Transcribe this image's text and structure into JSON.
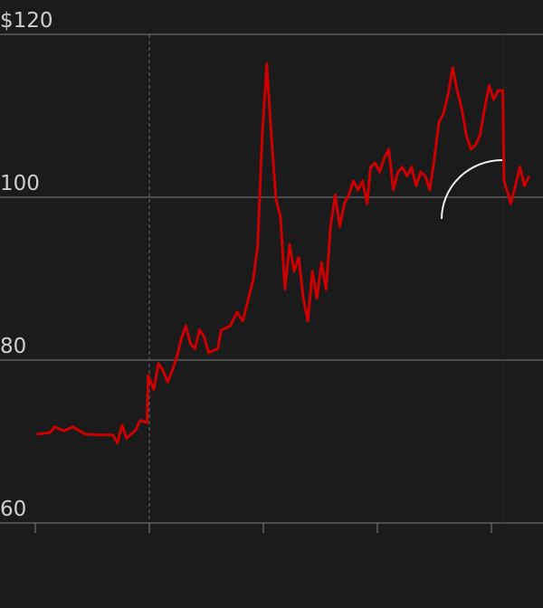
{
  "chart_data": {
    "type": "line",
    "title": "",
    "xlabel": "",
    "ylabel": "",
    "ylim": [
      60,
      120
    ],
    "yticks": [
      60,
      80,
      100,
      120
    ],
    "ytick_labels": [
      "60",
      "80",
      "100",
      "$120"
    ],
    "xticks": [
      0,
      1,
      2,
      3,
      4
    ],
    "xtick_labels": [],
    "xlim": [
      0,
      4.4
    ],
    "grid": "horizontal",
    "reference_lines_x": [
      1,
      4.11
    ],
    "colors": {
      "line": "#cc0000",
      "background": "#1b1b1b",
      "grid": "#6a6a6a",
      "annotation": "#f0f0f0"
    },
    "x": [
      0.01,
      0.13,
      0.17,
      0.25,
      0.33,
      0.44,
      0.56,
      0.68,
      0.72,
      0.76,
      0.8,
      0.88,
      0.92,
      0.98,
      0.99,
      1.04,
      1.08,
      1.12,
      1.16,
      1.2,
      1.24,
      1.28,
      1.32,
      1.36,
      1.4,
      1.44,
      1.48,
      1.52,
      1.6,
      1.63,
      1.71,
      1.77,
      1.82,
      1.87,
      1.91,
      1.95,
      1.99,
      2.03,
      2.07,
      2.11,
      2.15,
      2.19,
      2.23,
      2.27,
      2.31,
      2.35,
      2.39,
      2.43,
      2.47,
      2.51,
      2.55,
      2.59,
      2.63,
      2.67,
      2.71,
      2.75,
      2.79,
      2.83,
      2.87,
      2.91,
      2.94,
      2.98,
      3.02,
      3.06,
      3.1,
      3.14,
      3.18,
      3.22,
      3.26,
      3.3,
      3.34,
      3.38,
      3.42,
      3.46,
      3.5,
      3.54,
      3.58,
      3.62,
      3.66,
      3.7,
      3.74,
      3.78,
      3.82,
      3.86,
      3.9,
      3.94,
      3.98,
      4.02,
      4.06,
      4.1,
      4.11,
      4.15,
      4.17,
      4.21,
      4.25,
      4.29,
      4.33
    ],
    "series": [
      {
        "values": [
          70.9,
          71.1,
          71.8,
          71.3,
          71.8,
          70.9,
          70.8,
          70.8,
          69.8,
          72.0,
          70.4,
          71.4,
          72.6,
          72.3,
          78.1,
          76.4,
          79.6,
          78.7,
          77.3,
          78.7,
          80.3,
          82.6,
          84.2,
          82.0,
          81.4,
          83.7,
          82.9,
          80.9,
          81.4,
          83.7,
          84.2,
          85.9,
          84.8,
          87.6,
          89.8,
          94.0,
          107.6,
          116.4,
          107.6,
          99.8,
          97.6,
          88.7,
          94.2,
          90.9,
          92.6,
          87.6,
          84.8,
          90.9,
          87.6,
          92.0,
          88.7,
          96.4,
          100.3,
          96.4,
          99.2,
          100.3,
          102.0,
          100.9,
          102.0,
          99.2,
          103.7,
          104.2,
          103.1,
          104.8,
          105.9,
          100.9,
          103.1,
          103.7,
          102.6,
          103.7,
          101.4,
          103.1,
          102.6,
          100.9,
          104.8,
          109.2,
          110.3,
          112.6,
          115.9,
          113.1,
          110.9,
          107.6,
          105.9,
          106.4,
          107.6,
          110.9,
          113.7,
          112.0,
          113.1,
          113.1,
          102.0,
          100.3,
          99.2,
          101.4,
          103.7,
          101.4,
          102.6
        ]
      }
    ]
  }
}
